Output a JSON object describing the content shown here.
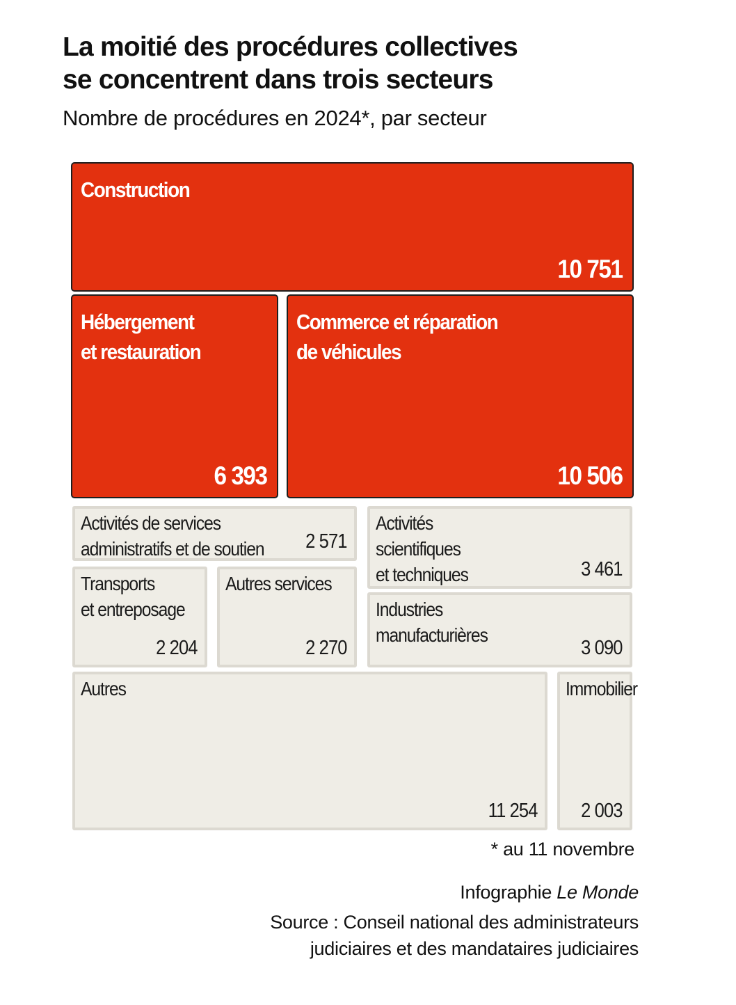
{
  "header": {
    "title_line1": "La moitié des procédures collectives",
    "title_line2": "se concentrent dans trois secteurs",
    "subtitle": "Nombre de procédures en 2024*, par secteur"
  },
  "colors": {
    "highlight": "#e3310f",
    "neutral": "#efede6",
    "neutral_border": "#dcd9d1"
  },
  "chart_data": {
    "type": "treemap",
    "unit": "procédures",
    "year": 2024,
    "items": [
      {
        "label_lines": [
          "Construction"
        ],
        "value": 10751,
        "display": "10 751",
        "highlight": true
      },
      {
        "label_lines": [
          "Hébergement",
          "et restauration"
        ],
        "value": 6393,
        "display": "6 393",
        "highlight": true
      },
      {
        "label_lines": [
          "Commerce et réparation",
          "de véhicules"
        ],
        "value": 10506,
        "display": "10 506",
        "highlight": true
      },
      {
        "label_lines": [
          "Activités de services",
          "administratifs et de soutien"
        ],
        "value": 2571,
        "display": "2 571",
        "highlight": false
      },
      {
        "label_lines": [
          "Activités",
          "scientifiques",
          "et techniques"
        ],
        "value": 3461,
        "display": "3 461",
        "highlight": false
      },
      {
        "label_lines": [
          "Transports",
          "et entreposage"
        ],
        "value": 2204,
        "display": "2 204",
        "highlight": false
      },
      {
        "label_lines": [
          "Autres services"
        ],
        "value": 2270,
        "display": "2 270",
        "highlight": false
      },
      {
        "label_lines": [
          "Industries",
          "manufacturières"
        ],
        "value": 3090,
        "display": "3 090",
        "highlight": false
      },
      {
        "label_lines": [
          "Autres"
        ],
        "value": 11254,
        "display": "11 254",
        "highlight": false
      },
      {
        "label_lines": [
          "Immobilier"
        ],
        "value": 2003,
        "display": "2 003",
        "highlight": false
      }
    ]
  },
  "footer": {
    "footnote": "* au 11 novembre",
    "credit_prefix": "Infographie",
    "credit_brand": "Le Monde",
    "source_line1": "Source : Conseil national des administrateurs",
    "source_line2": "judiciaires et des mandataires judiciaires"
  }
}
